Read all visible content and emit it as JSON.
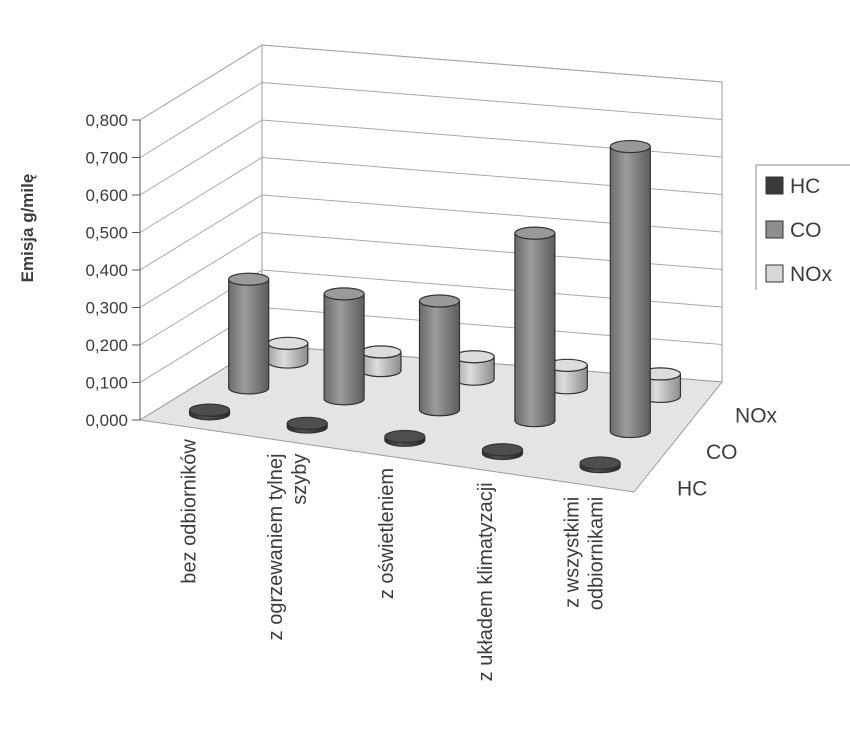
{
  "chart_data": {
    "type": "bar",
    "subtype": "3d-cylinder",
    "title": "",
    "ylabel": "Emisja g/milę",
    "ylim": [
      0,
      0.8
    ],
    "yticks": [
      "0,000",
      "0,100",
      "0,200",
      "0,300",
      "0,400",
      "0,500",
      "0,600",
      "0,700",
      "0,800"
    ],
    "categories": [
      [
        "bez odbiorników"
      ],
      [
        "z ogrzewaniem tylnej",
        "szyby"
      ],
      [
        "z oświetleniem"
      ],
      [
        "z układem klimatyzacji"
      ],
      [
        "z wszystkimi",
        "odbiornikami"
      ]
    ],
    "series": [
      {
        "name": "HC",
        "values": [
          0.01,
          0.01,
          0.01,
          0.01,
          0.01
        ],
        "color": "#3a3a3a"
      },
      {
        "name": "CO",
        "values": [
          0.29,
          0.28,
          0.29,
          0.5,
          0.76
        ],
        "color": "#8e8e8e"
      },
      {
        "name": "NOx",
        "values": [
          0.05,
          0.05,
          0.06,
          0.06,
          0.06
        ],
        "color": "#d8d8d8"
      }
    ],
    "depth_labels": [
      "NOx",
      "CO",
      "HC"
    ],
    "legend": {
      "position": "right",
      "items": [
        "HC",
        "CO",
        "NOx"
      ]
    },
    "grid": true
  }
}
